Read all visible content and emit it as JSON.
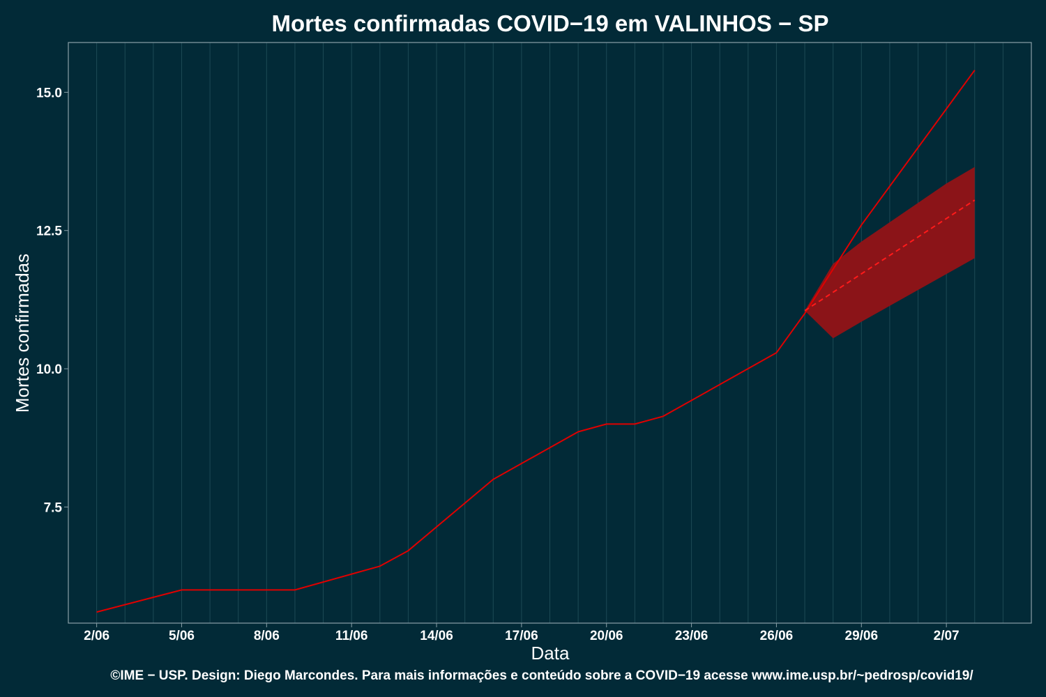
{
  "chart_data": {
    "type": "line",
    "title": "Mortes confirmadas COVID−19 em VALINHOS − SP",
    "xlabel": "Data",
    "ylabel": "Mortes confirmadas",
    "x_tick_labels": [
      "2/06",
      "5/06",
      "8/06",
      "11/06",
      "14/06",
      "17/06",
      "20/06",
      "23/06",
      "26/06",
      "29/06",
      "2/07"
    ],
    "y_tick_labels": [
      "7.5",
      "10.0",
      "12.5",
      "15.0"
    ],
    "y_ticks": [
      7.5,
      10.0,
      12.5,
      15.0
    ],
    "ylim": [
      5.4,
      15.9
    ],
    "xlim": [
      "2020-06-01",
      "2020-07-05"
    ],
    "grid": true,
    "series": [
      {
        "style": "solid",
        "color": "#e00000",
        "points": [
          [
            "2020-06-02",
            5.6
          ],
          [
            "2020-06-05",
            6.0
          ],
          [
            "2020-06-06",
            6.0
          ],
          [
            "2020-06-07",
            6.0
          ],
          [
            "2020-06-08",
            6.0
          ],
          [
            "2020-06-09",
            6.0
          ],
          [
            "2020-06-12",
            6.43
          ],
          [
            "2020-06-13",
            6.71
          ],
          [
            "2020-06-16",
            8.0
          ],
          [
            "2020-06-19",
            8.86
          ],
          [
            "2020-06-20",
            9.0
          ],
          [
            "2020-06-21",
            9.0
          ],
          [
            "2020-06-22",
            9.14
          ],
          [
            "2020-06-26",
            10.29
          ],
          [
            "2020-06-27",
            11.0
          ],
          [
            "2020-06-28",
            11.8
          ],
          [
            "2020-06-29",
            12.6
          ],
          [
            "2020-07-03",
            15.4
          ]
        ]
      },
      {
        "style": "dashed",
        "color": "#ff1a1a",
        "points": [
          [
            "2020-06-27",
            11.05
          ],
          [
            "2020-07-03",
            13.05
          ]
        ]
      }
    ],
    "band": {
      "color": "#8b1418",
      "upper": [
        [
          "2020-06-27",
          11.05
        ],
        [
          "2020-06-28",
          11.9
        ],
        [
          "2020-06-29",
          12.3
        ],
        [
          "2020-07-02",
          13.35
        ],
        [
          "2020-07-03",
          13.65
        ]
      ],
      "lower": [
        [
          "2020-06-27",
          11.05
        ],
        [
          "2020-06-28",
          10.55
        ],
        [
          "2020-06-29",
          10.85
        ],
        [
          "2020-07-03",
          12.0
        ]
      ]
    }
  },
  "caption": "©IME − USP. Design: Diego Marcondes. Para mais informações e conteúdo sobre a COVID−19 acesse www.ime.usp.br/~pedrosp/covid19/",
  "colors": {
    "background": "#022a37",
    "grid": "#1d4a55",
    "axis": "#8aa0a8",
    "line": "#e00000"
  }
}
